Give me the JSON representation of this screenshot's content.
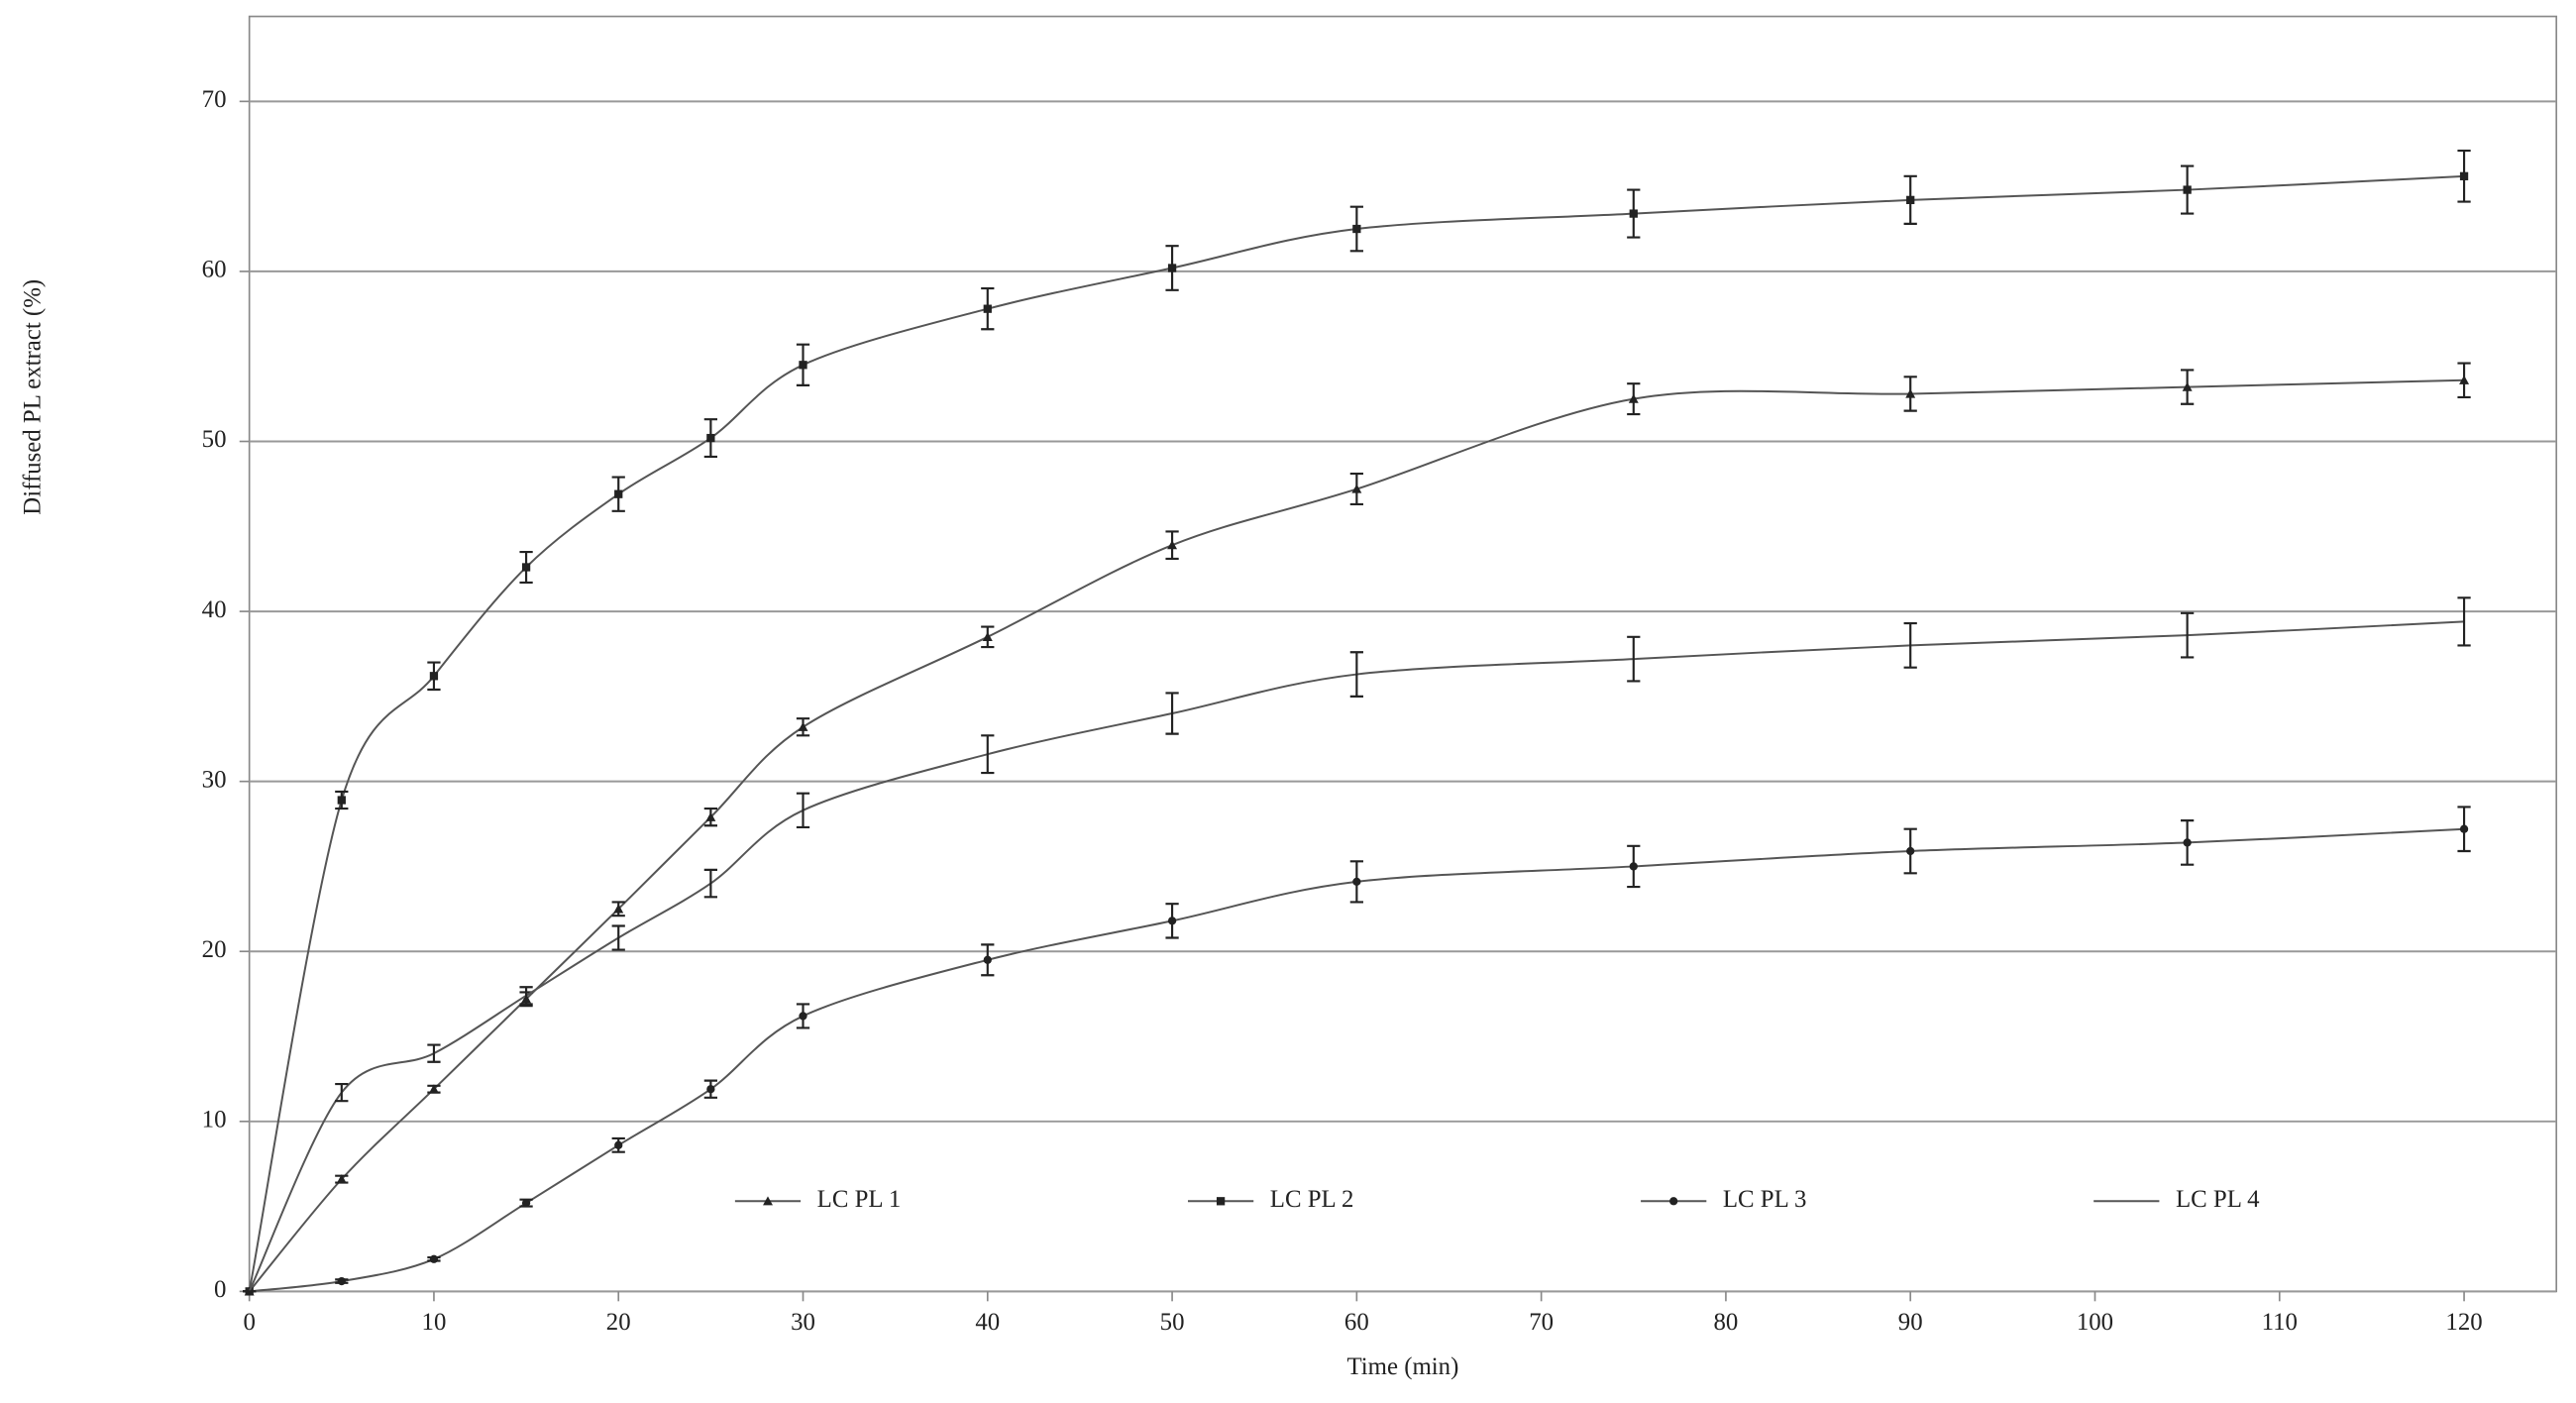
{
  "chart_data": {
    "type": "line",
    "x_label": "Time (min)",
    "y_label": "Diffused PL extract (%)",
    "x": [
      0,
      5,
      10,
      15,
      20,
      25,
      30,
      40,
      50,
      60,
      75,
      90,
      105,
      120
    ],
    "xlim": [
      0,
      125
    ],
    "xticks": [
      0,
      10,
      20,
      30,
      40,
      50,
      60,
      70,
      80,
      90,
      100,
      110,
      120
    ],
    "ylim": [
      0,
      75
    ],
    "yticks": [
      0,
      10,
      20,
      30,
      40,
      50,
      60,
      70
    ],
    "grid": true,
    "legend": "inside-bottom",
    "series": [
      {
        "name": "LC PL 1",
        "color": "#555555",
        "marker": "triangle",
        "values": [
          0,
          6.6,
          11.9,
          17.2,
          22.5,
          27.9,
          33.2,
          38.5,
          43.9,
          47.2,
          52.5,
          52.8,
          53.2,
          53.6
        ],
        "errors": [
          0,
          0.2,
          0.2,
          0.4,
          0.4,
          0.5,
          0.5,
          0.6,
          0.8,
          0.9,
          0.9,
          1.0,
          1.0,
          1.0
        ]
      },
      {
        "name": "LC PL 2",
        "color": "#555555",
        "marker": "square",
        "values": [
          0,
          28.9,
          36.2,
          42.6,
          46.9,
          50.2,
          54.5,
          57.8,
          60.2,
          62.5,
          63.4,
          64.2,
          64.8,
          65.6
        ],
        "errors": [
          0,
          0.5,
          0.8,
          0.9,
          1.0,
          1.1,
          1.2,
          1.2,
          1.3,
          1.3,
          1.4,
          1.4,
          1.4,
          1.5
        ]
      },
      {
        "name": "LC PL 3",
        "color": "#555555",
        "marker": "circle",
        "values": [
          0,
          0.6,
          1.9,
          5.2,
          8.6,
          11.9,
          16.2,
          19.5,
          21.8,
          24.1,
          25.0,
          25.9,
          26.4,
          27.2
        ],
        "errors": [
          0,
          0.1,
          0.1,
          0.2,
          0.4,
          0.5,
          0.7,
          0.9,
          1.0,
          1.2,
          1.2,
          1.3,
          1.3,
          1.3
        ]
      },
      {
        "name": "LC PL 4",
        "color": "#555555",
        "marker": "none",
        "values": [
          0,
          11.7,
          14.0,
          17.4,
          20.8,
          24.0,
          28.3,
          31.6,
          34.0,
          36.3,
          37.2,
          38.0,
          38.6,
          39.4
        ],
        "errors": [
          0,
          0.5,
          0.5,
          0.5,
          0.7,
          0.8,
          1.0,
          1.1,
          1.2,
          1.3,
          1.3,
          1.3,
          1.3,
          1.4
        ]
      }
    ]
  }
}
